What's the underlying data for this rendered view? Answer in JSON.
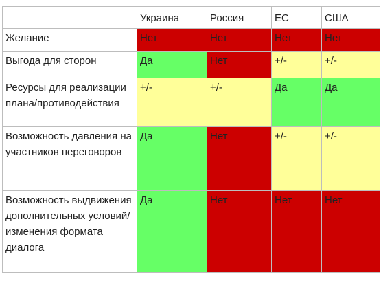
{
  "colors": {
    "no": "#cc0000",
    "yes": "#66ff66",
    "mixed": "#ffff99",
    "border": "#bdbdbd"
  },
  "table": {
    "columns": [
      "",
      "Украина",
      "Россия",
      "ЕС",
      "США"
    ],
    "rows": [
      {
        "label": "Желание",
        "cells": [
          {
            "text": "Нет",
            "tone": "no"
          },
          {
            "text": "Нет",
            "tone": "no"
          },
          {
            "text": "Нет",
            "tone": "no"
          },
          {
            "text": "Нет",
            "tone": "no"
          }
        ]
      },
      {
        "label": "Выгода для сторон",
        "cells": [
          {
            "text": "Да",
            "tone": "yes"
          },
          {
            "text": "Нет",
            "tone": "no"
          },
          {
            "text": "+/-",
            "tone": "mixed"
          },
          {
            "text": "+/-",
            "tone": "mixed"
          }
        ]
      },
      {
        "label": "Ресурсы для реализации плана/противодействия",
        "cells": [
          {
            "text": "+/-",
            "tone": "mixed"
          },
          {
            "text": "+/-",
            "tone": "mixed"
          },
          {
            "text": "Да",
            "tone": "yes"
          },
          {
            "text": "Да",
            "tone": "yes"
          }
        ]
      },
      {
        "label": "Возможность давления на участников переговоров",
        "cells": [
          {
            "text": "Да",
            "tone": "yes"
          },
          {
            "text": "Нет",
            "tone": "no"
          },
          {
            "text": "+/-",
            "tone": "mixed"
          },
          {
            "text": "+/-",
            "tone": "mixed"
          }
        ]
      },
      {
        "label": "Возможность выдвижения дополнительных условий/изменения формата диалога",
        "cells": [
          {
            "text": "Да",
            "tone": "yes"
          },
          {
            "text": "Нет",
            "tone": "no"
          },
          {
            "text": "Нет",
            "tone": "no"
          },
          {
            "text": "Нет",
            "tone": "no"
          }
        ]
      }
    ]
  }
}
